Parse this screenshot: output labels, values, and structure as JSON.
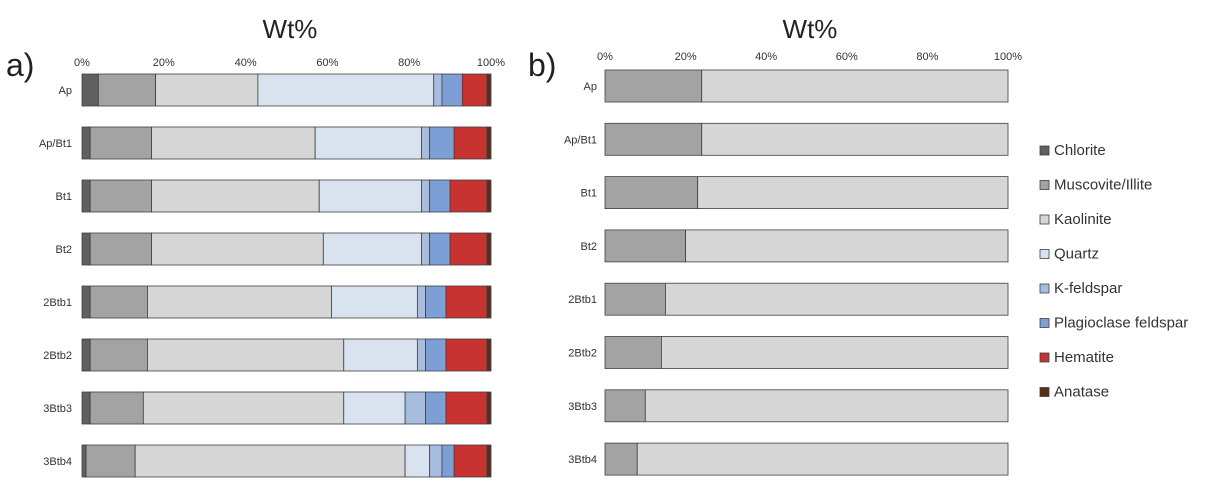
{
  "chart_data": [
    {
      "type": "bar",
      "orientation": "horizontal",
      "stacked": true,
      "panel_label": "a)",
      "title": "Wt%",
      "xlim": [
        0,
        100
      ],
      "x_ticks": [
        "0%",
        "20%",
        "40%",
        "60%",
        "80%",
        "100%"
      ],
      "categories": [
        "Ap",
        "Ap/Bt1",
        "Bt1",
        "Bt2",
        "2Btb1",
        "2Btb2",
        "3Btb3",
        "3Btb4"
      ],
      "series": [
        {
          "name": "Chlorite",
          "values": [
            4,
            2,
            2,
            2,
            2,
            2,
            2,
            1
          ]
        },
        {
          "name": "Muscovite/Illite",
          "values": [
            14,
            15,
            15,
            15,
            14,
            14,
            13,
            12
          ]
        },
        {
          "name": "Kaolinite",
          "values": [
            25,
            40,
            41,
            42,
            45,
            48,
            49,
            66
          ]
        },
        {
          "name": "Quartz",
          "values": [
            43,
            26,
            25,
            24,
            21,
            18,
            15,
            6
          ]
        },
        {
          "name": "K-feldspar",
          "values": [
            2,
            2,
            2,
            2,
            2,
            2,
            5,
            3
          ]
        },
        {
          "name": "Plagioclase feldspar",
          "values": [
            5,
            6,
            5,
            5,
            5,
            5,
            5,
            3
          ]
        },
        {
          "name": "Hematite",
          "values": [
            6,
            8,
            9,
            9,
            10,
            10,
            10,
            8
          ]
        },
        {
          "name": "Anatase",
          "values": [
            1,
            1,
            1,
            1,
            1,
            1,
            1,
            1
          ]
        }
      ]
    },
    {
      "type": "bar",
      "orientation": "horizontal",
      "stacked": true,
      "panel_label": "b)",
      "title": "Wt%",
      "xlim": [
        0,
        100
      ],
      "x_ticks": [
        "0%",
        "20%",
        "40%",
        "60%",
        "80%",
        "100%"
      ],
      "categories": [
        "Ap",
        "Ap/Bt1",
        "Bt1",
        "Bt2",
        "2Btb1",
        "2Btb2",
        "3Btb3",
        "3Btb4"
      ],
      "series": [
        {
          "name": "Chlorite",
          "values": [
            0,
            0,
            0,
            0,
            0,
            0,
            0,
            0
          ]
        },
        {
          "name": "Muscovite/Illite",
          "values": [
            24,
            24,
            23,
            20,
            15,
            14,
            10,
            8
          ]
        },
        {
          "name": "Kaolinite",
          "values": [
            76,
            76,
            77,
            80,
            85,
            86,
            90,
            92
          ]
        }
      ]
    }
  ],
  "legend": {
    "placement": "right",
    "items": [
      {
        "label": "Chlorite",
        "color": "#606060"
      },
      {
        "label": "Muscovite/Illite",
        "color": "#a3a3a3"
      },
      {
        "label": "Kaolinite",
        "color": "#d6d6d6"
      },
      {
        "label": "Quartz",
        "color": "#d9e3f0"
      },
      {
        "label": "K-feldspar",
        "color": "#a7bde0"
      },
      {
        "label": "Plagioclase feldspar",
        "color": "#7c9fd6"
      },
      {
        "label": "Hematite",
        "color": "#c73330"
      },
      {
        "label": "Anatase",
        "color": "#5e2d1a"
      }
    ]
  }
}
